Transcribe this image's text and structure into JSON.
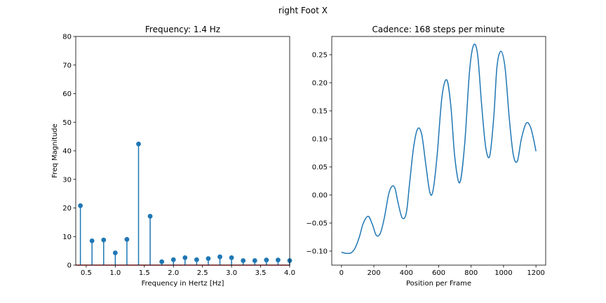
{
  "figure": {
    "suptitle": "right Foot X"
  },
  "chart_data": [
    {
      "type": "stem",
      "title": "Frequency: 1.4 Hz",
      "xlabel": "Frequency in Hertz [Hz]",
      "ylabel": "Freq Magnitude",
      "xlim": [
        0.32,
        4.0
      ],
      "ylim": [
        0,
        80
      ],
      "xticks": [
        0.5,
        1.0,
        1.5,
        2.0,
        2.5,
        3.0,
        3.5,
        4.0
      ],
      "xtick_labels": [
        "0.5",
        "1.0",
        "1.5",
        "2.0",
        "2.5",
        "3.0",
        "3.5",
        "4.0"
      ],
      "yticks": [
        0,
        10,
        20,
        30,
        40,
        50,
        60,
        70,
        80
      ],
      "ytick_labels": [
        "0",
        "10",
        "20",
        "30",
        "40",
        "50",
        "60",
        "70",
        "80"
      ],
      "x": [
        0.4,
        0.6,
        0.8,
        1.0,
        1.2,
        1.4,
        1.6,
        1.8,
        2.0,
        2.2,
        2.4,
        2.6,
        2.8,
        3.0,
        3.2,
        3.4,
        3.6,
        3.8,
        4.0
      ],
      "values": [
        20.8,
        8.5,
        8.8,
        4.3,
        9.0,
        42.4,
        17.1,
        1.2,
        1.9,
        2.6,
        1.9,
        2.3,
        2.9,
        2.6,
        1.6,
        1.6,
        1.8,
        1.8,
        1.6
      ],
      "colors": {
        "stem": "#1f77b4",
        "baseline": "#d62728"
      }
    },
    {
      "type": "line",
      "title": "Cadence: 168 steps per minute",
      "xlabel": "Position per Frame",
      "ylabel": "",
      "xlim": [
        -60,
        1260
      ],
      "ylim": [
        -0.125,
        0.2825
      ],
      "xticks": [
        0,
        200,
        400,
        600,
        800,
        1000,
        1200
      ],
      "xtick_labels": [
        "0",
        "200",
        "400",
        "600",
        "800",
        "1000",
        "1200"
      ],
      "yticks": [
        -0.1,
        -0.05,
        0.0,
        0.05,
        0.1,
        0.15,
        0.2,
        0.25
      ],
      "ytick_labels": [
        "−0.10",
        "−0.05",
        "0.00",
        "0.05",
        "0.10",
        "0.15",
        "0.20",
        "0.25"
      ],
      "series": [
        {
          "x": [
            0,
            30,
            60,
            85,
            110,
            135,
            165,
            190,
            215,
            240,
            265,
            290,
            310,
            330,
            350,
            375,
            400,
            420,
            445,
            470,
            495,
            520,
            545,
            565,
            590,
            620,
            650,
            675,
            700,
            730,
            760,
            790,
            815,
            840,
            865,
            890,
            915,
            940,
            960,
            985,
            1010,
            1035,
            1060,
            1085,
            1110,
            1140,
            1165,
            1185,
            1200
          ],
          "y": [
            -0.102,
            -0.104,
            -0.103,
            -0.094,
            -0.075,
            -0.05,
            -0.038,
            -0.052,
            -0.072,
            -0.068,
            -0.04,
            0.0,
            0.015,
            0.012,
            -0.015,
            -0.041,
            -0.032,
            0.02,
            0.085,
            0.118,
            0.108,
            0.055,
            0.005,
            0.008,
            0.07,
            0.175,
            0.205,
            0.158,
            0.065,
            0.022,
            0.09,
            0.22,
            0.267,
            0.25,
            0.16,
            0.085,
            0.07,
            0.14,
            0.23,
            0.256,
            0.225,
            0.138,
            0.072,
            0.06,
            0.1,
            0.128,
            0.122,
            0.1,
            0.078
          ]
        }
      ],
      "colors": {
        "line": "#1f77b4"
      }
    }
  ]
}
